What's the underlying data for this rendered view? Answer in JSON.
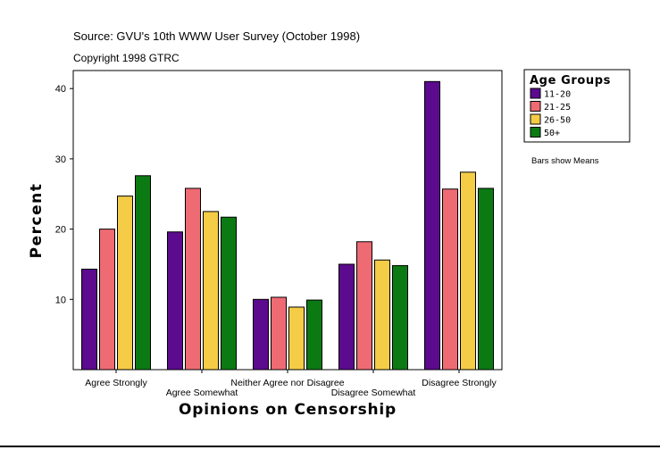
{
  "header": {
    "source": "Source: GVU's 10th WWW User Survey (October 1998)",
    "copyright": "Copyright 1998 GTRC"
  },
  "legend": {
    "title": "Age Groups",
    "items": [
      {
        "label": "11-20",
        "color": "#5c0a8e"
      },
      {
        "label": "21-25",
        "color": "#ef6b73"
      },
      {
        "label": "26-50",
        "color": "#f4cc46"
      },
      {
        "label": "50+",
        "color": "#0b7a12"
      }
    ]
  },
  "note": "Bars show Means",
  "chart_data": {
    "type": "bar",
    "xlabel": "Opinions on Censorship",
    "ylabel": "Percent",
    "ylim": [
      0,
      42
    ],
    "yticks": [
      10,
      20,
      30,
      40
    ],
    "grid": false,
    "legend_position": "right",
    "categories": [
      "Agree Strongly",
      "Agree Somewhat",
      "Neither Agree nor Disagree",
      "Disagree Somewhat",
      "Disagree Strongly"
    ],
    "series": [
      {
        "name": "11-20",
        "color": "#5c0a8e",
        "values": [
          14.3,
          19.6,
          10.0,
          15.0,
          41.0
        ]
      },
      {
        "name": "21-25",
        "color": "#ef6b73",
        "values": [
          20.0,
          25.8,
          10.3,
          18.2,
          25.7
        ]
      },
      {
        "name": "26-50",
        "color": "#f4cc46",
        "values": [
          24.7,
          22.5,
          8.9,
          15.6,
          28.1
        ]
      },
      {
        "name": "50+",
        "color": "#0b7a12",
        "values": [
          27.6,
          21.7,
          9.9,
          14.8,
          25.8
        ]
      }
    ]
  }
}
